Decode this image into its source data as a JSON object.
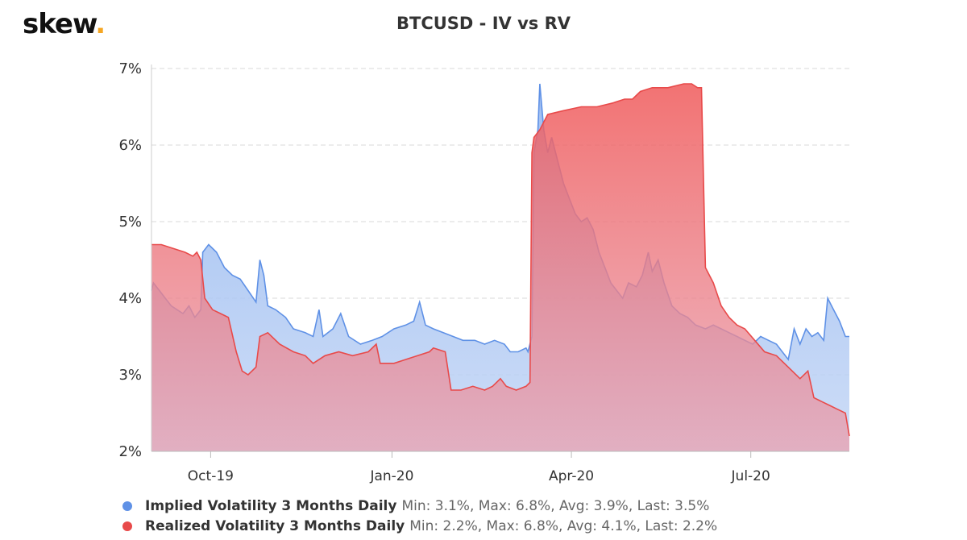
{
  "brand": {
    "name": "skew",
    "dot": "."
  },
  "chart_data": {
    "type": "area",
    "title": "BTCUSD - IV vs RV",
    "xlabel": "",
    "ylabel": "",
    "ylim": [
      2,
      7
    ],
    "y_ticks": [
      "2%",
      "3%",
      "4%",
      "5%",
      "6%",
      "7%"
    ],
    "x_range": [
      "2019-09-01",
      "2020-08-20"
    ],
    "x_ticks": [
      {
        "date": "2019-10-01",
        "label": "Oct-19"
      },
      {
        "date": "2020-01-01",
        "label": "Jan-20"
      },
      {
        "date": "2020-04-01",
        "label": "Apr-20"
      },
      {
        "date": "2020-07-01",
        "label": "Jul-20"
      }
    ],
    "grid": true,
    "legend_position": "bottom-left",
    "series": [
      {
        "name": "Implied Volatility 3 Months Daily",
        "color": "#5f91e6",
        "stats": "Min: 3.1%, Max: 6.8%, Avg: 3.9%, Last: 3.5%",
        "points": [
          [
            "2019-09-01",
            4.1
          ],
          [
            "2019-09-02",
            4.2
          ],
          [
            "2019-09-05",
            4.1
          ],
          [
            "2019-09-08",
            4.0
          ],
          [
            "2019-09-11",
            3.9
          ],
          [
            "2019-09-14",
            3.85
          ],
          [
            "2019-09-17",
            3.8
          ],
          [
            "2019-09-20",
            3.9
          ],
          [
            "2019-09-23",
            3.75
          ],
          [
            "2019-09-26",
            3.85
          ],
          [
            "2019-09-27",
            4.6
          ],
          [
            "2019-09-30",
            4.7
          ],
          [
            "2019-10-04",
            4.6
          ],
          [
            "2019-10-08",
            4.4
          ],
          [
            "2019-10-12",
            4.3
          ],
          [
            "2019-10-16",
            4.25
          ],
          [
            "2019-10-20",
            4.1
          ],
          [
            "2019-10-24",
            3.95
          ],
          [
            "2019-10-26",
            4.5
          ],
          [
            "2019-10-28",
            4.3
          ],
          [
            "2019-10-30",
            3.9
          ],
          [
            "2019-11-03",
            3.85
          ],
          [
            "2019-11-08",
            3.75
          ],
          [
            "2019-11-12",
            3.6
          ],
          [
            "2019-11-18",
            3.55
          ],
          [
            "2019-11-22",
            3.5
          ],
          [
            "2019-11-25",
            3.85
          ],
          [
            "2019-11-27",
            3.5
          ],
          [
            "2019-12-02",
            3.6
          ],
          [
            "2019-12-06",
            3.8
          ],
          [
            "2019-12-10",
            3.5
          ],
          [
            "2019-12-16",
            3.4
          ],
          [
            "2019-12-22",
            3.45
          ],
          [
            "2019-12-27",
            3.5
          ],
          [
            "2020-01-02",
            3.6
          ],
          [
            "2020-01-08",
            3.65
          ],
          [
            "2020-01-12",
            3.7
          ],
          [
            "2020-01-15",
            3.95
          ],
          [
            "2020-01-18",
            3.65
          ],
          [
            "2020-01-22",
            3.6
          ],
          [
            "2020-01-27",
            3.55
          ],
          [
            "2020-02-01",
            3.5
          ],
          [
            "2020-02-06",
            3.45
          ],
          [
            "2020-02-12",
            3.45
          ],
          [
            "2020-02-17",
            3.4
          ],
          [
            "2020-02-22",
            3.45
          ],
          [
            "2020-02-27",
            3.4
          ],
          [
            "2020-03-01",
            3.3
          ],
          [
            "2020-03-05",
            3.3
          ],
          [
            "2020-03-09",
            3.35
          ],
          [
            "2020-03-10",
            3.3
          ],
          [
            "2020-03-12",
            3.5
          ],
          [
            "2020-03-13",
            5.9
          ],
          [
            "2020-03-15",
            6.2
          ],
          [
            "2020-03-16",
            6.8
          ],
          [
            "2020-03-18",
            6.2
          ],
          [
            "2020-03-20",
            5.9
          ],
          [
            "2020-03-22",
            6.1
          ],
          [
            "2020-03-25",
            5.8
          ],
          [
            "2020-03-28",
            5.5
          ],
          [
            "2020-03-31",
            5.3
          ],
          [
            "2020-04-03",
            5.1
          ],
          [
            "2020-04-06",
            5.0
          ],
          [
            "2020-04-09",
            5.05
          ],
          [
            "2020-04-12",
            4.9
          ],
          [
            "2020-04-15",
            4.6
          ],
          [
            "2020-04-18",
            4.4
          ],
          [
            "2020-04-21",
            4.2
          ],
          [
            "2020-04-24",
            4.1
          ],
          [
            "2020-04-27",
            4.0
          ],
          [
            "2020-04-30",
            4.2
          ],
          [
            "2020-05-04",
            4.15
          ],
          [
            "2020-05-07",
            4.3
          ],
          [
            "2020-05-10",
            4.6
          ],
          [
            "2020-05-12",
            4.35
          ],
          [
            "2020-05-15",
            4.5
          ],
          [
            "2020-05-18",
            4.2
          ],
          [
            "2020-05-22",
            3.9
          ],
          [
            "2020-05-26",
            3.8
          ],
          [
            "2020-05-30",
            3.75
          ],
          [
            "2020-06-03",
            3.65
          ],
          [
            "2020-06-08",
            3.6
          ],
          [
            "2020-06-12",
            3.65
          ],
          [
            "2020-06-16",
            3.6
          ],
          [
            "2020-06-20",
            3.55
          ],
          [
            "2020-06-24",
            3.5
          ],
          [
            "2020-06-28",
            3.45
          ],
          [
            "2020-07-02",
            3.4
          ],
          [
            "2020-07-06",
            3.5
          ],
          [
            "2020-07-10",
            3.45
          ],
          [
            "2020-07-14",
            3.4
          ],
          [
            "2020-07-17",
            3.3
          ],
          [
            "2020-07-20",
            3.2
          ],
          [
            "2020-07-23",
            3.6
          ],
          [
            "2020-07-26",
            3.4
          ],
          [
            "2020-07-29",
            3.6
          ],
          [
            "2020-08-01",
            3.5
          ],
          [
            "2020-08-04",
            3.55
          ],
          [
            "2020-08-07",
            3.45
          ],
          [
            "2020-08-09",
            4.0
          ],
          [
            "2020-08-12",
            3.85
          ],
          [
            "2020-08-15",
            3.7
          ],
          [
            "2020-08-18",
            3.5
          ],
          [
            "2020-08-20",
            3.5
          ]
        ]
      },
      {
        "name": "Realized Volatility 3 Months Daily",
        "color": "#e84a4a",
        "stats": "Min: 2.2%, Max: 6.8%, Avg: 4.1%, Last: 2.2%",
        "points": [
          [
            "2019-09-01",
            4.7
          ],
          [
            "2019-09-06",
            4.7
          ],
          [
            "2019-09-12",
            4.65
          ],
          [
            "2019-09-18",
            4.6
          ],
          [
            "2019-09-22",
            4.55
          ],
          [
            "2019-09-24",
            4.6
          ],
          [
            "2019-09-26",
            4.5
          ],
          [
            "2019-09-28",
            4.0
          ],
          [
            "2019-10-02",
            3.85
          ],
          [
            "2019-10-06",
            3.8
          ],
          [
            "2019-10-10",
            3.75
          ],
          [
            "2019-10-14",
            3.3
          ],
          [
            "2019-10-17",
            3.05
          ],
          [
            "2019-10-20",
            3.0
          ],
          [
            "2019-10-24",
            3.1
          ],
          [
            "2019-10-26",
            3.5
          ],
          [
            "2019-10-30",
            3.55
          ],
          [
            "2019-11-05",
            3.4
          ],
          [
            "2019-11-12",
            3.3
          ],
          [
            "2019-11-18",
            3.25
          ],
          [
            "2019-11-22",
            3.15
          ],
          [
            "2019-11-28",
            3.25
          ],
          [
            "2019-12-05",
            3.3
          ],
          [
            "2019-12-12",
            3.25
          ],
          [
            "2019-12-20",
            3.3
          ],
          [
            "2019-12-24",
            3.4
          ],
          [
            "2019-12-26",
            3.15
          ],
          [
            "2020-01-02",
            3.15
          ],
          [
            "2020-01-08",
            3.2
          ],
          [
            "2020-01-14",
            3.25
          ],
          [
            "2020-01-20",
            3.3
          ],
          [
            "2020-01-22",
            3.35
          ],
          [
            "2020-01-28",
            3.3
          ],
          [
            "2020-01-31",
            2.8
          ],
          [
            "2020-02-05",
            2.8
          ],
          [
            "2020-02-11",
            2.85
          ],
          [
            "2020-02-17",
            2.8
          ],
          [
            "2020-02-21",
            2.85
          ],
          [
            "2020-02-25",
            2.95
          ],
          [
            "2020-02-28",
            2.85
          ],
          [
            "2020-03-04",
            2.8
          ],
          [
            "2020-03-09",
            2.85
          ],
          [
            "2020-03-11",
            2.9
          ],
          [
            "2020-03-12",
            5.9
          ],
          [
            "2020-03-13",
            6.1
          ],
          [
            "2020-03-16",
            6.2
          ],
          [
            "2020-03-20",
            6.4
          ],
          [
            "2020-03-28",
            6.45
          ],
          [
            "2020-04-06",
            6.5
          ],
          [
            "2020-04-14",
            6.5
          ],
          [
            "2020-04-22",
            6.55
          ],
          [
            "2020-04-28",
            6.6
          ],
          [
            "2020-05-02",
            6.6
          ],
          [
            "2020-05-06",
            6.7
          ],
          [
            "2020-05-12",
            6.75
          ],
          [
            "2020-05-20",
            6.75
          ],
          [
            "2020-05-28",
            6.8
          ],
          [
            "2020-06-01",
            6.8
          ],
          [
            "2020-06-04",
            6.75
          ],
          [
            "2020-06-06",
            6.75
          ],
          [
            "2020-06-08",
            4.4
          ],
          [
            "2020-06-12",
            4.2
          ],
          [
            "2020-06-16",
            3.9
          ],
          [
            "2020-06-20",
            3.75
          ],
          [
            "2020-06-24",
            3.65
          ],
          [
            "2020-06-28",
            3.6
          ],
          [
            "2020-07-03",
            3.45
          ],
          [
            "2020-07-08",
            3.3
          ],
          [
            "2020-07-14",
            3.25
          ],
          [
            "2020-07-18",
            3.15
          ],
          [
            "2020-07-22",
            3.05
          ],
          [
            "2020-07-26",
            2.95
          ],
          [
            "2020-07-30",
            3.05
          ],
          [
            "2020-08-02",
            2.7
          ],
          [
            "2020-08-06",
            2.65
          ],
          [
            "2020-08-10",
            2.6
          ],
          [
            "2020-08-14",
            2.55
          ],
          [
            "2020-08-18",
            2.5
          ],
          [
            "2020-08-20",
            2.2
          ]
        ]
      }
    ]
  }
}
